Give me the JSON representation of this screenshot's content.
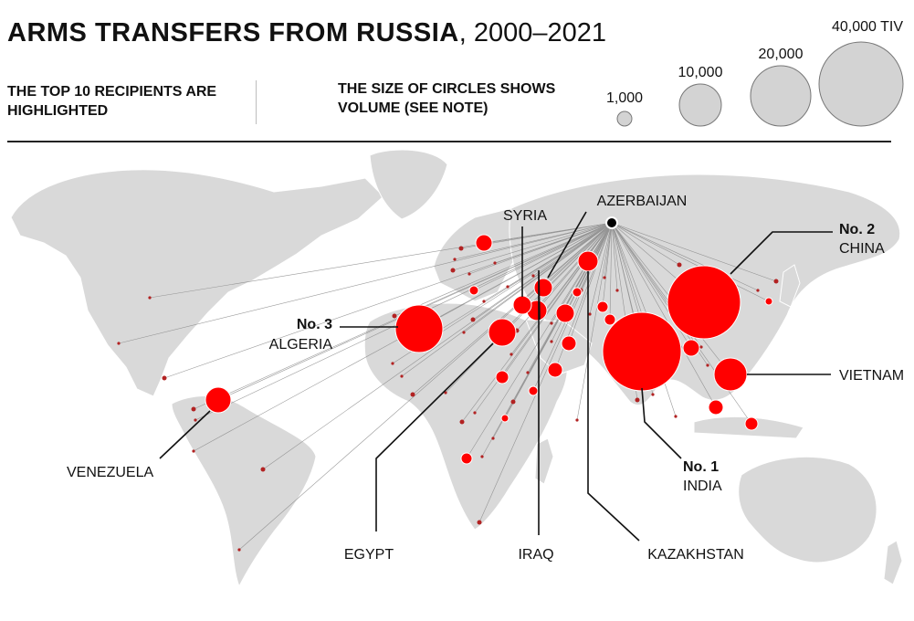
{
  "header": {
    "title_bold": "ARMS TRANSFERS FROM RUSSIA",
    "title_rest": ", 2000–2021",
    "subtitle_left": "THE TOP 10 RECIPIENTS ARE HIGHLIGHTED",
    "subtitle_right": "THE SIZE OF CIRCLES SHOWS VOLUME (SEE NOTE)"
  },
  "legend": [
    {
      "value": 1000,
      "label": "1,000"
    },
    {
      "value": 10000,
      "label": "10,000"
    },
    {
      "value": 20000,
      "label": "20,000"
    },
    {
      "value": 40000,
      "label": "40,000 TIV"
    }
  ],
  "colors": {
    "recipient": "#ff0000",
    "small_recipient": "#b22222",
    "land": "#d9d9d9",
    "origin": "#000000",
    "lines": "#888888",
    "legend_circle": "#d3d3d3"
  },
  "origin": {
    "name": "Russia"
  },
  "top_recipients": [
    {
      "key": "india",
      "rank": "No. 1",
      "name": "INDIA"
    },
    {
      "key": "china",
      "rank": "No. 2",
      "name": "CHINA"
    },
    {
      "key": "algeria",
      "rank": "No. 3",
      "name": "ALGERIA"
    },
    {
      "key": "vietnam",
      "rank": "",
      "name": "VIETNAM"
    },
    {
      "key": "venezuela",
      "rank": "",
      "name": "VENEZUELA"
    },
    {
      "key": "egypt",
      "rank": "",
      "name": "EGYPT"
    },
    {
      "key": "iraq",
      "rank": "",
      "name": "IRAQ"
    },
    {
      "key": "syria",
      "rank": "",
      "name": "SYRIA"
    },
    {
      "key": "azerbaijan",
      "rank": "",
      "name": "AZERBAIJAN"
    },
    {
      "key": "kazakhstan",
      "rank": "",
      "name": "KAZAKHSTAN"
    }
  ]
}
